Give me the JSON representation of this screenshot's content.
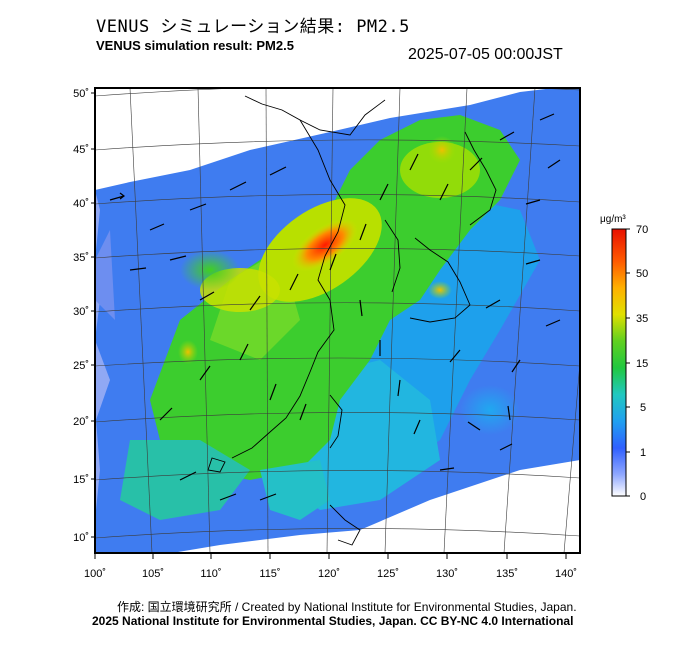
{
  "header": {
    "title_jp": "VENUS シミュレーション結果: PM2.5",
    "title_en": "VENUS simulation result: PM2.5",
    "timestamp": "2025-07-05 00:00JST"
  },
  "map": {
    "lat_labels": [
      "50˚",
      "45˚",
      "40˚",
      "35˚",
      "30˚",
      "25˚",
      "20˚",
      "15˚",
      "10˚"
    ],
    "lon_labels": [
      "100˚",
      "105˚",
      "110˚",
      "115˚",
      "120˚",
      "125˚",
      "130˚",
      "135˚",
      "140˚"
    ]
  },
  "colorbar": {
    "unit": "μg/m³",
    "tick_labels": [
      "70",
      "50",
      "35",
      "15",
      "5",
      "1",
      "0"
    ],
    "colors": [
      "#ff2a00",
      "#ffa800",
      "#d9e600",
      "#30d020",
      "#20d0d0",
      "#3070ff",
      "#ffffff"
    ]
  },
  "footer": {
    "credit": "作成: 国立環境研究所 / Created by National Institute for Environmental Studies, Japan.",
    "license": "2025 National Institute for Environmental Studies, Japan. CC BY-NC 4.0 International"
  }
}
